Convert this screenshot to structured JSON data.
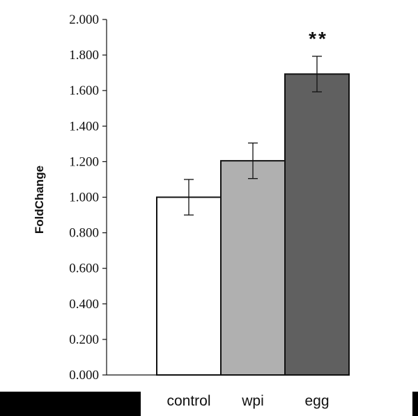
{
  "chart_data": {
    "type": "bar",
    "categories": [
      "control",
      "wpi",
      "egg"
    ],
    "values": [
      1.0,
      1.205,
      1.693
    ],
    "errors": [
      0.1,
      0.1,
      0.1
    ],
    "bar_colors": [
      "#ffffff",
      "#b0b0b0",
      "#606060"
    ],
    "annotations": [
      {
        "category": "egg",
        "text": "**"
      }
    ],
    "title": "",
    "xlabel": "",
    "ylabel": "FoldChange",
    "ylim": [
      0,
      2.0
    ],
    "yticks": [
      0,
      0.2,
      0.4,
      0.6,
      0.8,
      1.0,
      1.2,
      1.4,
      1.6,
      1.8,
      2.0
    ],
    "ytick_labels": [
      "0.000",
      "0.200",
      "0.400",
      "0.600",
      "0.800",
      "1.000",
      "1.200",
      "1.400",
      "1.600",
      "1.800",
      "2.000"
    ],
    "grid": false,
    "legend": "none"
  },
  "colors": {
    "axis": "#111111",
    "bar_edge": "#111111",
    "mask": "#000000"
  }
}
